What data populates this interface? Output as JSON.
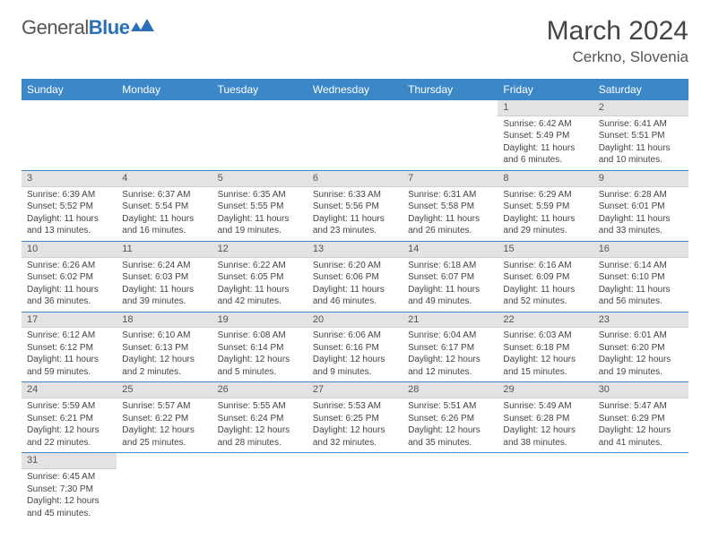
{
  "brand": {
    "part1": "General",
    "part2": "Blue"
  },
  "title": "March 2024",
  "location": "Cerkno, Slovenia",
  "daysOfWeek": [
    "Sunday",
    "Monday",
    "Tuesday",
    "Wednesday",
    "Thursday",
    "Friday",
    "Saturday"
  ],
  "colors": {
    "headerBg": "#3b87c8",
    "dayNumBg": "#e3e3e3",
    "rowBorder": "#3b87c8"
  },
  "weeks": [
    [
      null,
      null,
      null,
      null,
      null,
      {
        "n": "1",
        "sunrise": "6:42 AM",
        "sunset": "5:49 PM",
        "daylight": "11 hours and 6 minutes."
      },
      {
        "n": "2",
        "sunrise": "6:41 AM",
        "sunset": "5:51 PM",
        "daylight": "11 hours and 10 minutes."
      }
    ],
    [
      {
        "n": "3",
        "sunrise": "6:39 AM",
        "sunset": "5:52 PM",
        "daylight": "11 hours and 13 minutes."
      },
      {
        "n": "4",
        "sunrise": "6:37 AM",
        "sunset": "5:54 PM",
        "daylight": "11 hours and 16 minutes."
      },
      {
        "n": "5",
        "sunrise": "6:35 AM",
        "sunset": "5:55 PM",
        "daylight": "11 hours and 19 minutes."
      },
      {
        "n": "6",
        "sunrise": "6:33 AM",
        "sunset": "5:56 PM",
        "daylight": "11 hours and 23 minutes."
      },
      {
        "n": "7",
        "sunrise": "6:31 AM",
        "sunset": "5:58 PM",
        "daylight": "11 hours and 26 minutes."
      },
      {
        "n": "8",
        "sunrise": "6:29 AM",
        "sunset": "5:59 PM",
        "daylight": "11 hours and 29 minutes."
      },
      {
        "n": "9",
        "sunrise": "6:28 AM",
        "sunset": "6:01 PM",
        "daylight": "11 hours and 33 minutes."
      }
    ],
    [
      {
        "n": "10",
        "sunrise": "6:26 AM",
        "sunset": "6:02 PM",
        "daylight": "11 hours and 36 minutes."
      },
      {
        "n": "11",
        "sunrise": "6:24 AM",
        "sunset": "6:03 PM",
        "daylight": "11 hours and 39 minutes."
      },
      {
        "n": "12",
        "sunrise": "6:22 AM",
        "sunset": "6:05 PM",
        "daylight": "11 hours and 42 minutes."
      },
      {
        "n": "13",
        "sunrise": "6:20 AM",
        "sunset": "6:06 PM",
        "daylight": "11 hours and 46 minutes."
      },
      {
        "n": "14",
        "sunrise": "6:18 AM",
        "sunset": "6:07 PM",
        "daylight": "11 hours and 49 minutes."
      },
      {
        "n": "15",
        "sunrise": "6:16 AM",
        "sunset": "6:09 PM",
        "daylight": "11 hours and 52 minutes."
      },
      {
        "n": "16",
        "sunrise": "6:14 AM",
        "sunset": "6:10 PM",
        "daylight": "11 hours and 56 minutes."
      }
    ],
    [
      {
        "n": "17",
        "sunrise": "6:12 AM",
        "sunset": "6:12 PM",
        "daylight": "11 hours and 59 minutes."
      },
      {
        "n": "18",
        "sunrise": "6:10 AM",
        "sunset": "6:13 PM",
        "daylight": "12 hours and 2 minutes."
      },
      {
        "n": "19",
        "sunrise": "6:08 AM",
        "sunset": "6:14 PM",
        "daylight": "12 hours and 5 minutes."
      },
      {
        "n": "20",
        "sunrise": "6:06 AM",
        "sunset": "6:16 PM",
        "daylight": "12 hours and 9 minutes."
      },
      {
        "n": "21",
        "sunrise": "6:04 AM",
        "sunset": "6:17 PM",
        "daylight": "12 hours and 12 minutes."
      },
      {
        "n": "22",
        "sunrise": "6:03 AM",
        "sunset": "6:18 PM",
        "daylight": "12 hours and 15 minutes."
      },
      {
        "n": "23",
        "sunrise": "6:01 AM",
        "sunset": "6:20 PM",
        "daylight": "12 hours and 19 minutes."
      }
    ],
    [
      {
        "n": "24",
        "sunrise": "5:59 AM",
        "sunset": "6:21 PM",
        "daylight": "12 hours and 22 minutes."
      },
      {
        "n": "25",
        "sunrise": "5:57 AM",
        "sunset": "6:22 PM",
        "daylight": "12 hours and 25 minutes."
      },
      {
        "n": "26",
        "sunrise": "5:55 AM",
        "sunset": "6:24 PM",
        "daylight": "12 hours and 28 minutes."
      },
      {
        "n": "27",
        "sunrise": "5:53 AM",
        "sunset": "6:25 PM",
        "daylight": "12 hours and 32 minutes."
      },
      {
        "n": "28",
        "sunrise": "5:51 AM",
        "sunset": "6:26 PM",
        "daylight": "12 hours and 35 minutes."
      },
      {
        "n": "29",
        "sunrise": "5:49 AM",
        "sunset": "6:28 PM",
        "daylight": "12 hours and 38 minutes."
      },
      {
        "n": "30",
        "sunrise": "5:47 AM",
        "sunset": "6:29 PM",
        "daylight": "12 hours and 41 minutes."
      }
    ],
    [
      {
        "n": "31",
        "sunrise": "6:45 AM",
        "sunset": "7:30 PM",
        "daylight": "12 hours and 45 minutes."
      },
      null,
      null,
      null,
      null,
      null,
      null
    ]
  ],
  "labels": {
    "sunrise": "Sunrise: ",
    "sunset": "Sunset: ",
    "daylight": "Daylight: "
  }
}
